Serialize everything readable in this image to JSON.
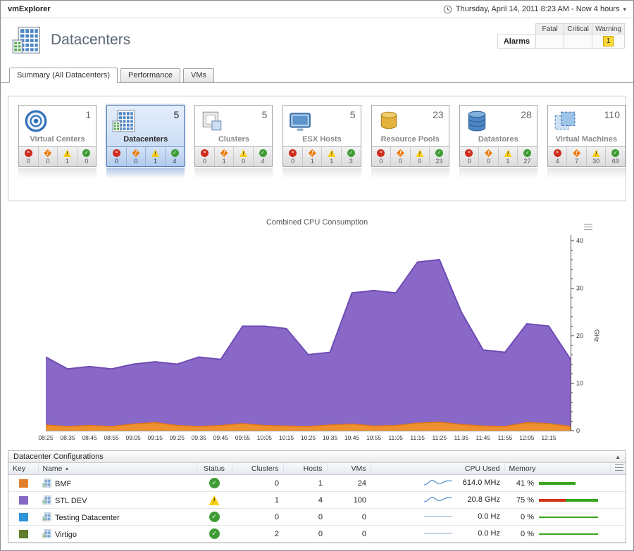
{
  "topbar": {
    "app_title": "vmExplorer",
    "time_range": "Thursday, April 14, 2011 8:23 AM - Now 4 hours"
  },
  "header": {
    "title": "Datacenters",
    "alarms": {
      "label": "Alarms",
      "columns": [
        "Fatal",
        "Critical",
        "Warning"
      ],
      "fatal_value": "",
      "critical_value": "",
      "warning_value": "1"
    }
  },
  "tabs": [
    {
      "label": "Summary (All Datacenters)",
      "active": true
    },
    {
      "label": "Performance",
      "active": false
    },
    {
      "label": "VMs",
      "active": false
    }
  ],
  "tiles": [
    {
      "name": "Virtual Centers",
      "count": "1",
      "fatal": "0",
      "critical": "0",
      "warning": "1",
      "normal": "0"
    },
    {
      "name": "Datacenters",
      "count": "5",
      "fatal": "0",
      "critical": "0",
      "warning": "1",
      "normal": "4"
    },
    {
      "name": "Clusters",
      "count": "5",
      "fatal": "0",
      "critical": "1",
      "warning": "0",
      "normal": "4"
    },
    {
      "name": "ESX Hosts",
      "count": "5",
      "fatal": "0",
      "critical": "1",
      "warning": "1",
      "normal": "3"
    },
    {
      "name": "Resource Pools",
      "count": "23",
      "fatal": "0",
      "critical": "0",
      "warning": "0",
      "normal": "23"
    },
    {
      "name": "Datastores",
      "count": "28",
      "fatal": "0",
      "critical": "0",
      "warning": "1",
      "normal": "27"
    },
    {
      "name": "Virtual Machines",
      "count": "110",
      "fatal": "4",
      "critical": "7",
      "warning": "30",
      "normal": "69"
    }
  ],
  "chart_data": {
    "type": "area",
    "title": "Combined CPU Consumption",
    "ylabel": "GHz",
    "ylim": [
      0,
      40
    ],
    "y_ticks": [
      0,
      10,
      20,
      30,
      40
    ],
    "x_ticks": [
      "08:25",
      "08:35",
      "08:45",
      "08:55",
      "09:05",
      "09:15",
      "09:25",
      "09:35",
      "09:45",
      "09:55",
      "10:05",
      "10:15",
      "10:25",
      "10:35",
      "10:45",
      "10:55",
      "11:05",
      "11:15",
      "11:25",
      "11:35",
      "11:45",
      "11:55",
      "12:05",
      "12:15"
    ],
    "series": [
      {
        "name": "series1",
        "color": "#8a68c8",
        "line_color": "#6f4cb4",
        "values": [
          15.5,
          13,
          13.5,
          13,
          14,
          14.5,
          14,
          15.5,
          15,
          22,
          22,
          21.5,
          16,
          16.5,
          29,
          29.5,
          29,
          35.5,
          36,
          25,
          17,
          16.5,
          22.5,
          22,
          15
        ]
      },
      {
        "name": "series2",
        "color": "#f0912f",
        "line_color": "#dd7514",
        "values": [
          1.2,
          0.9,
          1.1,
          0.9,
          1.4,
          1.7,
          1.1,
          0.9,
          1.1,
          1.5,
          1.1,
          1,
          0.9,
          1.2,
          1.4,
          1,
          1.1,
          1.6,
          1.8,
          1.3,
          1,
          0.9,
          1.7,
          1.5,
          0.9
        ]
      }
    ]
  },
  "table": {
    "panel_title": "Datacenter Configurations",
    "columns": [
      "Key",
      "Name",
      "Status",
      "Clusters",
      "Hosts",
      "VMs",
      "CPU Used",
      "Memory"
    ],
    "sort_column": "Name",
    "rows": [
      {
        "key_color": "#e2802a",
        "name": "BMF",
        "status": "normal",
        "clusters": "0",
        "hosts": "1",
        "vms": "24",
        "cpu": "614.0 MHz",
        "spark": "wave",
        "memory_pct": "41 %",
        "memory_bars": [
          {
            "color": "#3aa51e",
            "pct": 62,
            "h": 4
          }
        ]
      },
      {
        "key_color": "#8668c6",
        "name": "STL DEV",
        "status": "warning",
        "clusters": "1",
        "hosts": "4",
        "vms": "100",
        "cpu": "20.8 GHz",
        "spark": "wave",
        "memory_pct": "75 %",
        "memory_bars": [
          {
            "color": "#d23410",
            "pct": 45,
            "h": 4
          },
          {
            "color": "#3aa51e",
            "pct": 55,
            "h": 4
          }
        ]
      },
      {
        "key_color": "#2e93d8",
        "name": "Testing Datacenter",
        "status": "normal",
        "clusters": "0",
        "hosts": "0",
        "vms": "0",
        "cpu": "0.0 Hz",
        "spark": "flat",
        "memory_pct": "0 %",
        "memory_bars": [
          {
            "color": "#3aa51e",
            "pct": 100,
            "h": 2
          }
        ]
      },
      {
        "key_color": "#5f7d2a",
        "name": "Virtigo",
        "status": "normal",
        "clusters": "2",
        "hosts": "0",
        "vms": "0",
        "cpu": "0.0 Hz",
        "spark": "flat",
        "memory_pct": "0 %",
        "memory_bars": [
          {
            "color": "#3aa51e",
            "pct": 100,
            "h": 2
          }
        ]
      }
    ]
  }
}
